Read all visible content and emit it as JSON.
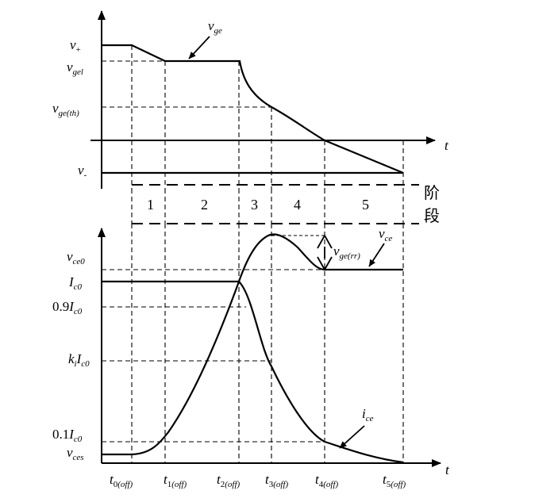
{
  "diagram": {
    "upper_panel": {
      "axis_label": "t",
      "levels": [
        {
          "id": "v_plus",
          "main": "v",
          "sub": "+"
        },
        {
          "id": "v_gel",
          "main": "v",
          "sub": "gel"
        },
        {
          "id": "v_ge_th",
          "main": "v",
          "sub": "ge(th)"
        },
        {
          "id": "v_minus",
          "main": "v",
          "sub": "-"
        }
      ],
      "curve_label": {
        "main": "v",
        "sub": "ge"
      }
    },
    "stages": {
      "numbers": [
        "1",
        "2",
        "3",
        "4",
        "5"
      ],
      "label_line1": "阶",
      "label_line2": "段"
    },
    "lower_panel": {
      "axis_label": "t",
      "levels": [
        {
          "id": "v_ce0",
          "main": "v",
          "sub": "ce0"
        },
        {
          "id": "I_c0",
          "main": "I",
          "sub": "c0"
        },
        {
          "id": "I_09",
          "prefix": "0.9",
          "main": "I",
          "sub": "c0"
        },
        {
          "id": "k_i_I_c0",
          "prefix_main": "k",
          "prefix_sub": "i",
          "main": "I",
          "sub": "c0"
        },
        {
          "id": "I_01",
          "prefix": "0.1",
          "main": "I",
          "sub": "c0"
        },
        {
          "id": "v_ces",
          "main": "v",
          "sub": "ces"
        }
      ],
      "overshoot_label": {
        "main": "v",
        "sub": "ge(rr)"
      },
      "vce_label": {
        "main": "v",
        "sub": "ce"
      },
      "ice_label": {
        "main": "i",
        "sub": "ce"
      },
      "time_ticks": [
        {
          "main": "t",
          "sub_num": "0",
          "sub_paren": "(off)"
        },
        {
          "main": "t",
          "sub_num": "1",
          "sub_paren": "(off)"
        },
        {
          "main": "t",
          "sub_num": "2",
          "sub_paren": "(off)"
        },
        {
          "main": "t",
          "sub_num": "3",
          "sub_paren": "(off)"
        },
        {
          "main": "t",
          "sub_num": "4",
          "sub_paren": "(off)"
        },
        {
          "main": "t",
          "sub_num": "5",
          "sub_paren": "(off)"
        }
      ]
    }
  }
}
